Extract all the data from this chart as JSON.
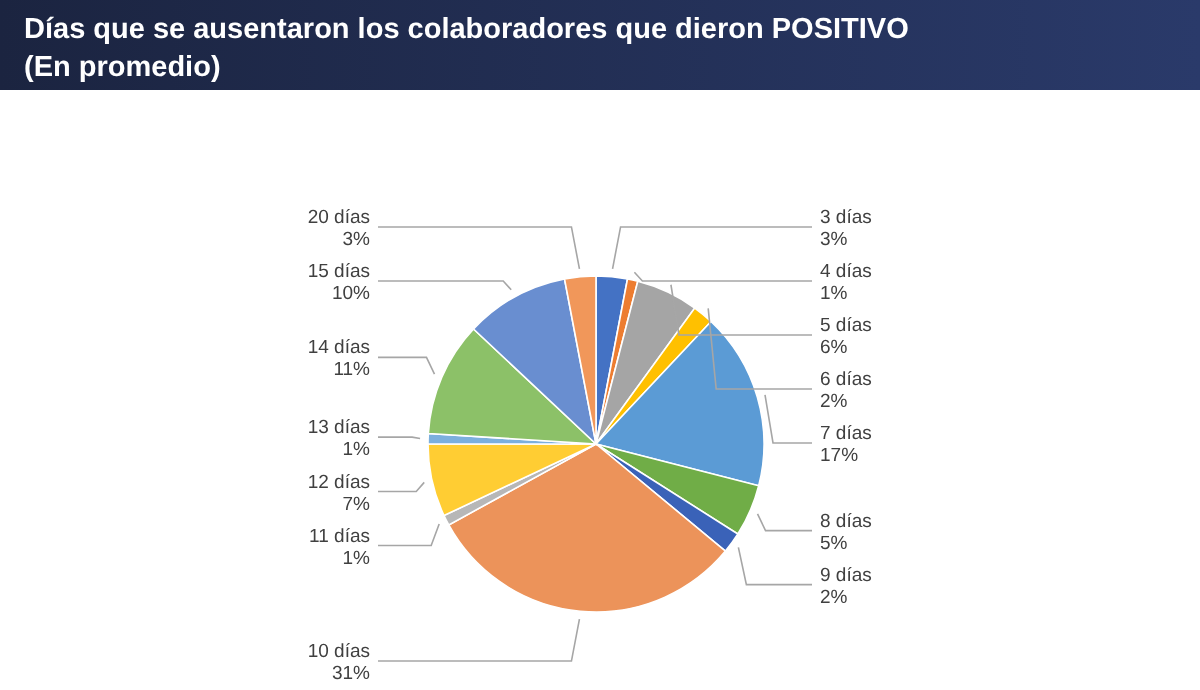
{
  "chart_data": {
    "type": "pie",
    "title": "Días que se ausentaron los colaboradores que dieron POSITIVO",
    "subtitle": "(En promedio)",
    "categories": [
      "3 días",
      "4 días",
      "5 días",
      "6 días",
      "7 días",
      "8 días",
      "9 días",
      "10 días",
      "11 días",
      "12 días",
      "13 días",
      "14 días",
      "15 días",
      "20 días"
    ],
    "values": [
      3,
      1,
      6,
      2,
      17,
      5,
      2,
      31,
      1,
      7,
      1,
      11,
      10,
      3
    ],
    "colors": [
      "#4472c4",
      "#ed7d31",
      "#a5a5a5",
      "#ffc000",
      "#5b9bd5",
      "#70ad47",
      "#3a62b8",
      "#ec935a",
      "#b7b7b7",
      "#ffcd33",
      "#7cafdd",
      "#8cc168",
      "#698ed0",
      "#f1975a"
    ],
    "value_labels": [
      "3%",
      "1%",
      "6%",
      "2%",
      "17%",
      "5%",
      "2%",
      "31%",
      "1%",
      "7%",
      "1%",
      "11%",
      "10%",
      "3%"
    ]
  }
}
